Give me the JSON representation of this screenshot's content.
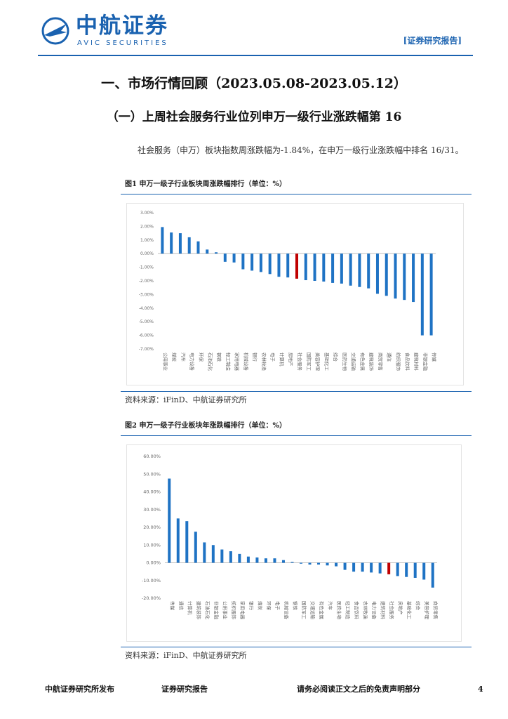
{
  "header": {
    "logo_cn": "中航证券",
    "logo_en": "AVIC SECURITIES",
    "report_tag": "[证券研究报告]"
  },
  "section_title": "一、市场行情回顾（2023.05.08-2023.05.12）",
  "subsection_title": "（一）上周社会服务行业位列申万一级行业涨跌幅第 16",
  "paragraph": "社会服务（申万）板块指数周涨跌幅为-1.84%，在申万一级行业涨跌幅中排名 16/31。",
  "figure1": {
    "title": "图1 申万一级子行业板块周涨跌幅排行（单位：%）",
    "source": "资料来源：iFinD、中航证券研究所"
  },
  "figure2": {
    "title": "图2 申万一级子行业板块年涨跌幅排行（单位：%）",
    "source": "资料来源：iFinD、中航证券研究所"
  },
  "footer": {
    "left": "中航证券研究所发布",
    "center": "证券研究报告",
    "right": "请务必阅读正文之后的免责声明部分",
    "page": "4"
  },
  "colors": {
    "brand": "#1a62b0",
    "bar": "#1f73c4",
    "highlight": "#c00000"
  },
  "chart_data": [
    {
      "type": "bar",
      "ylim": [
        -7,
        3
      ],
      "yticks": [
        "3.00%",
        "2.00%",
        "1.00%",
        "0.00%",
        "-1.00%",
        "-2.00%",
        "-3.00%",
        "-4.00%",
        "-5.00%",
        "-6.00%",
        "-7.00%"
      ],
      "categories": [
        "公用事业",
        "煤炭",
        "汽车",
        "电力设备",
        "环保",
        "石油石化",
        "钢铁",
        "轻工制造",
        "家用电器",
        "机械设备",
        "银行",
        "农林牧渔",
        "电子",
        "计算机",
        "房地产",
        "社会服务",
        "国防军工",
        "美容护理",
        "基础化工",
        "综合",
        "医药生物",
        "交通运输",
        "有色金属",
        "建筑装饰",
        "商贸零售",
        "通信",
        "纺织服饰",
        "食品饮料",
        "建筑材料",
        "非银金融",
        "传媒"
      ],
      "values": [
        1.95,
        1.55,
        1.5,
        1.2,
        0.9,
        0.3,
        0.1,
        -0.6,
        -0.65,
        -1.15,
        -1.25,
        -1.35,
        -1.5,
        -1.7,
        -1.75,
        -1.84,
        -1.95,
        -2.0,
        -2.05,
        -2.15,
        -2.2,
        -2.35,
        -2.45,
        -2.55,
        -2.95,
        -3.1,
        -3.3,
        -3.4,
        -3.55,
        -6.0,
        -6.0
      ],
      "highlight_category": "社会服务"
    },
    {
      "type": "bar",
      "ylim": [
        -20,
        60
      ],
      "yticks": [
        "60.00%",
        "50.00%",
        "40.00%",
        "30.00%",
        "20.00%",
        "10.00%",
        "0.00%",
        "-10.00%",
        "-20.00%"
      ],
      "categories": [
        "传媒",
        "通信",
        "计算机",
        "建筑装饰",
        "石油石化",
        "非银金融",
        "公用事业",
        "纺织服饰",
        "家用电器",
        "银行",
        "煤炭",
        "环保",
        "电子",
        "机械设备",
        "钢铁",
        "国防军工",
        "交通运输",
        "有色金属",
        "汽车",
        "医药生物",
        "轻工制造",
        "食品饮料",
        "农林牧渔",
        "电力设备",
        "建筑材料",
        "社会服务",
        "房地产",
        "基础化工",
        "综合",
        "美容护理",
        "商贸零售"
      ],
      "values": [
        47.5,
        25,
        23.5,
        17.5,
        11.5,
        10,
        7.5,
        6.5,
        5,
        3.5,
        3,
        2.5,
        2.5,
        1.5,
        0.5,
        -0.5,
        -1,
        -1,
        -1.5,
        -2,
        -4,
        -5,
        -5,
        -5.5,
        -6,
        -6.5,
        -7.5,
        -8,
        -8.5,
        -9.5,
        -14
      ],
      "highlight_category": "社会服务"
    }
  ]
}
